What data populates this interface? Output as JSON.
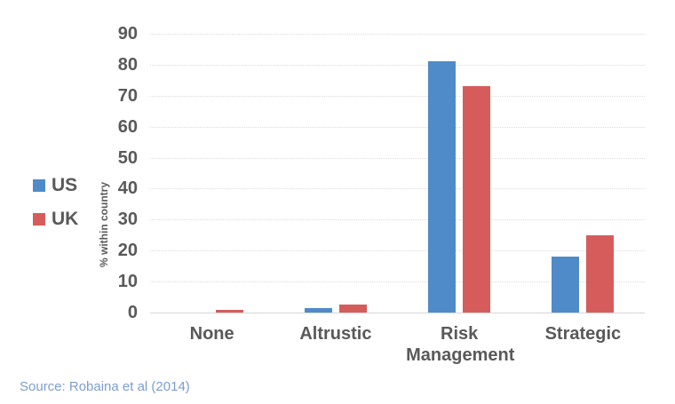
{
  "chart_data": {
    "type": "bar",
    "title": "",
    "categories": [
      "None",
      "Altrustic",
      "Risk Management",
      "Strategic"
    ],
    "series": [
      {
        "name": "US",
        "color": "#4f8bc8",
        "values": [
          0,
          1.5,
          81,
          18
        ]
      },
      {
        "name": "UK",
        "color": "#d65c5c",
        "values": [
          1,
          2.5,
          73,
          25
        ]
      }
    ],
    "xlabel": "",
    "ylabel": "% within country",
    "ylim": [
      0,
      90
    ],
    "yticks": [
      0,
      10,
      20,
      30,
      40,
      50,
      60,
      70,
      80,
      90
    ],
    "grid": true,
    "legend_position": "left",
    "source": "Source: Robaina et al (2014)"
  },
  "colors": {
    "us_bar": "#4f8bc8",
    "uk_bar": "#d65c5c",
    "axis_text": "#595959",
    "gridline": "#dcdcdc",
    "source_text": "#7d9dce",
    "background": "#ffffff"
  }
}
